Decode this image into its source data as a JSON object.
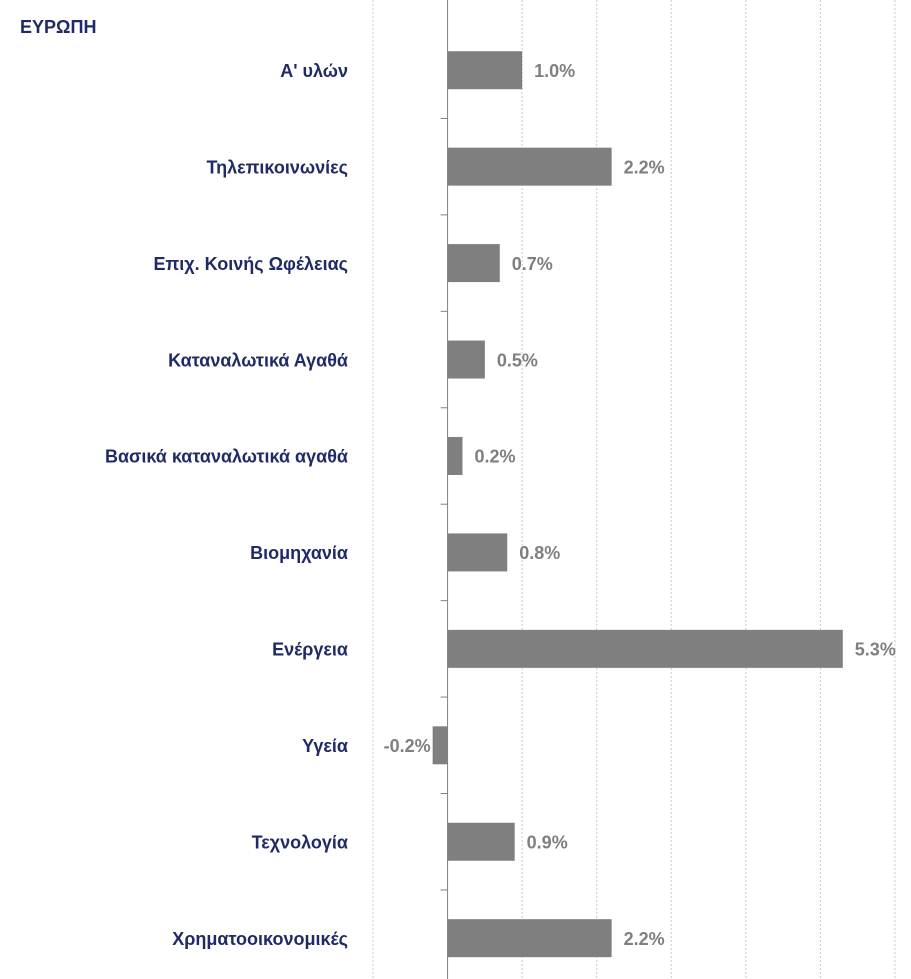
{
  "chart_data": {
    "type": "bar",
    "orientation": "horizontal",
    "title": "ΕΥΡΩΠΗ",
    "categories": [
      "Α' υλών",
      "Τηλεπικοινωνίες",
      "Επιχ. Κοινής Ωφέλειας",
      "Καταναλωτικά Αγαθά",
      "Βασικά καταναλωτικά αγαθά",
      "Βιομηχανία",
      "Ενέργεια",
      "Υγεία",
      "Τεχνολογία",
      "Χρηματοοικονομικές"
    ],
    "values": [
      1.0,
      2.2,
      0.7,
      0.5,
      0.2,
      0.8,
      5.3,
      -0.2,
      0.9,
      2.2
    ],
    "value_labels": [
      "1.0%",
      "2.2%",
      "0.7%",
      "0.5%",
      "0.2%",
      "0.8%",
      "5.3%",
      "-0.2%",
      "0.9%",
      "2.2%"
    ],
    "color": "#7f7f7f",
    "xlim": [
      -1,
      6
    ],
    "xticks": [
      -1,
      0,
      1,
      2,
      3,
      4,
      5,
      6
    ],
    "grid": true
  }
}
